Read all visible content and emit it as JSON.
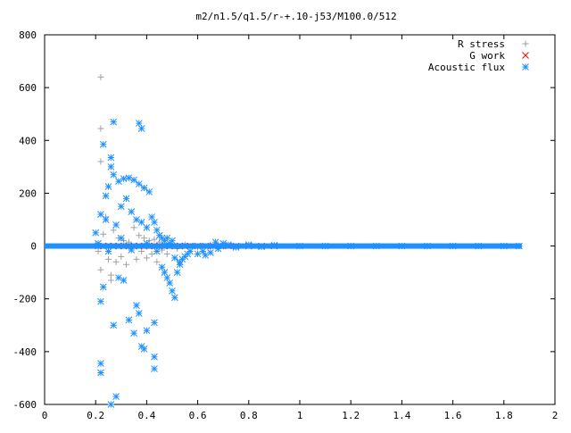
{
  "chart_data": {
    "type": "scatter",
    "title": "m2/n1.5/q1.5/r-+.10-j53/M100.0/512",
    "xlabel": "",
    "ylabel": "",
    "xlim": [
      0,
      2
    ],
    "ylim": [
      -600,
      800
    ],
    "xticks": [
      0,
      0.2,
      0.4,
      0.6,
      0.8,
      1,
      1.2,
      1.4,
      1.6,
      1.8,
      2
    ],
    "xtick_labels": [
      "0",
      "0.2",
      "0.4",
      "0.6",
      "0.8",
      "1",
      "1.2",
      "1.4",
      "1.6",
      "1.8",
      "2"
    ],
    "yticks": [
      -600,
      -400,
      -200,
      0,
      200,
      400,
      600,
      800
    ],
    "ytick_labels": [
      "-600",
      "-400",
      "-200",
      "0",
      "200",
      "400",
      "600",
      "800"
    ],
    "grid": false,
    "legend_position": "top-right",
    "series": [
      {
        "name": "R stress",
        "marker": "plus",
        "color": "#a0a0a0",
        "points": [
          [
            0.22,
            640
          ],
          [
            0.22,
            445
          ],
          [
            0.22,
            320
          ],
          [
            0.22,
            -90
          ],
          [
            0.2,
            5
          ],
          [
            0.21,
            -20
          ],
          [
            0.23,
            45
          ],
          [
            0.24,
            110
          ],
          [
            0.25,
            -50
          ],
          [
            0.26,
            -110
          ],
          [
            0.26,
            -130
          ],
          [
            0.27,
            60
          ],
          [
            0.28,
            -60
          ],
          [
            0.29,
            30
          ],
          [
            0.3,
            -40
          ],
          [
            0.31,
            20
          ],
          [
            0.32,
            -70
          ],
          [
            0.33,
            15
          ],
          [
            0.34,
            -10
          ],
          [
            0.35,
            70
          ],
          [
            0.36,
            -50
          ],
          [
            0.37,
            40
          ],
          [
            0.38,
            -20
          ],
          [
            0.39,
            30
          ],
          [
            0.4,
            -45
          ],
          [
            0.41,
            20
          ],
          [
            0.42,
            -30
          ],
          [
            0.43,
            25
          ],
          [
            0.44,
            -60
          ],
          [
            0.45,
            15
          ],
          [
            0.46,
            -15
          ],
          [
            0.47,
            10
          ],
          [
            0.48,
            -30
          ],
          [
            0.5,
            5
          ],
          [
            0.52,
            -10
          ],
          [
            0.55,
            5
          ],
          [
            0.6,
            -5
          ],
          [
            0.65,
            5
          ],
          [
            0.7,
            3
          ]
        ]
      },
      {
        "name": "G work",
        "marker": "cross",
        "color": "#ff0000",
        "points": [
          [
            0.21,
            0
          ],
          [
            0.23,
            0
          ],
          [
            0.25,
            0
          ],
          [
            0.27,
            0
          ],
          [
            0.29,
            0
          ],
          [
            0.31,
            0
          ],
          [
            0.33,
            0
          ],
          [
            0.35,
            0
          ],
          [
            0.37,
            0
          ],
          [
            0.39,
            0
          ],
          [
            0.41,
            0
          ],
          [
            0.43,
            0
          ],
          [
            0.45,
            0
          ],
          [
            0.47,
            0
          ],
          [
            0.49,
            0
          ],
          [
            0.51,
            0
          ],
          [
            0.53,
            0
          ],
          [
            0.55,
            0
          ],
          [
            0.57,
            0
          ],
          [
            0.6,
            0
          ],
          [
            0.63,
            0
          ],
          [
            0.66,
            0
          ],
          [
            0.69,
            0
          ],
          [
            0.72,
            0
          ],
          [
            0.75,
            0
          ],
          [
            0.8,
            0
          ],
          [
            0.85,
            0
          ],
          [
            0.9,
            0
          ]
        ]
      },
      {
        "name": "Acoustic flux",
        "marker": "star",
        "color": "#1e90ff",
        "points": [
          [
            0.27,
            470
          ],
          [
            0.37,
            465
          ],
          [
            0.38,
            445
          ],
          [
            0.23,
            385
          ],
          [
            0.26,
            335
          ],
          [
            0.26,
            300
          ],
          [
            0.27,
            270
          ],
          [
            0.29,
            245
          ],
          [
            0.31,
            255
          ],
          [
            0.33,
            258
          ],
          [
            0.35,
            250
          ],
          [
            0.37,
            235
          ],
          [
            0.39,
            220
          ],
          [
            0.41,
            205
          ],
          [
            0.25,
            225
          ],
          [
            0.24,
            190
          ],
          [
            0.22,
            120
          ],
          [
            0.24,
            100
          ],
          [
            0.28,
            80
          ],
          [
            0.3,
            150
          ],
          [
            0.32,
            180
          ],
          [
            0.34,
            130
          ],
          [
            0.36,
            100
          ],
          [
            0.38,
            90
          ],
          [
            0.4,
            70
          ],
          [
            0.42,
            110
          ],
          [
            0.43,
            90
          ],
          [
            0.44,
            60
          ],
          [
            0.45,
            40
          ],
          [
            0.46,
            30
          ],
          [
            0.47,
            20
          ],
          [
            0.49,
            10
          ],
          [
            0.5,
            20
          ],
          [
            0.2,
            50
          ],
          [
            0.21,
            10
          ],
          [
            0.22,
            -210
          ],
          [
            0.23,
            -155
          ],
          [
            0.27,
            -300
          ],
          [
            0.29,
            -120
          ],
          [
            0.31,
            -130
          ],
          [
            0.33,
            -280
          ],
          [
            0.35,
            -330
          ],
          [
            0.36,
            -225
          ],
          [
            0.38,
            -380
          ],
          [
            0.37,
            -255
          ],
          [
            0.4,
            -320
          ],
          [
            0.43,
            -290
          ],
          [
            0.43,
            -420
          ],
          [
            0.43,
            -465
          ],
          [
            0.22,
            -445
          ],
          [
            0.22,
            -480
          ],
          [
            0.26,
            -600
          ],
          [
            0.28,
            -570
          ],
          [
            0.39,
            -390
          ],
          [
            0.46,
            -80
          ],
          [
            0.47,
            -100
          ],
          [
            0.48,
            -120
          ],
          [
            0.49,
            -140
          ],
          [
            0.5,
            -170
          ],
          [
            0.51,
            -195
          ],
          [
            0.52,
            -100
          ],
          [
            0.53,
            -60
          ],
          [
            0.54,
            -50
          ],
          [
            0.55,
            -40
          ],
          [
            0.57,
            -20
          ],
          [
            0.6,
            -30
          ],
          [
            0.63,
            -35
          ],
          [
            0.65,
            -25
          ],
          [
            0.68,
            -10
          ],
          [
            0.7,
            10
          ],
          [
            0.25,
            -20
          ],
          [
            0.3,
            30
          ],
          [
            0.34,
            -15
          ],
          [
            0.4,
            10
          ],
          [
            0.44,
            -20
          ],
          [
            0.48,
            30
          ],
          [
            0.51,
            -45
          ],
          [
            0.53,
            -70
          ],
          [
            0.56,
            -30
          ],
          [
            0.62,
            -20
          ],
          [
            0.67,
            15
          ],
          [
            0.72,
            5
          ],
          [
            0.75,
            -5
          ],
          [
            0.8,
            5
          ],
          [
            0.85,
            -3
          ],
          [
            0.9,
            3
          ],
          [
            1.0,
            0
          ],
          [
            1.1,
            0
          ],
          [
            1.2,
            0
          ],
          [
            1.3,
            0
          ],
          [
            1.4,
            0
          ],
          [
            1.5,
            0
          ],
          [
            1.6,
            0
          ],
          [
            1.7,
            0
          ],
          [
            1.8,
            0
          ],
          [
            1.86,
            0
          ]
        ],
        "band_x": [
          0,
          1.87
        ],
        "band_y": 0
      }
    ]
  }
}
